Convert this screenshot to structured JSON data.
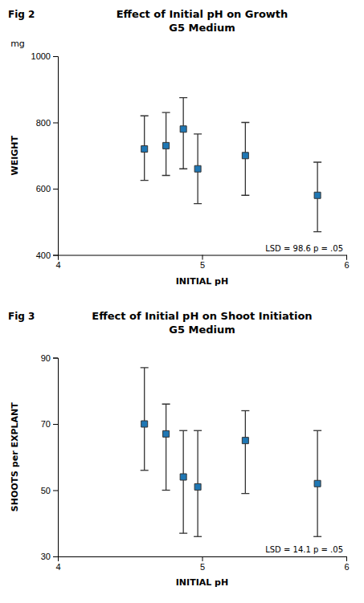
{
  "chart_data": [
    {
      "type": "scatter",
      "title": "Effect of Initial pH on Growth",
      "subtitle": "G5 Medium",
      "annotations": [
        "Fig 2",
        "mg",
        "LSD = 98.6 p = .05"
      ],
      "xlabel": "INITIAL pH",
      "ylabel": "WEIGHT",
      "marker": "square",
      "x": [
        4.6,
        4.75,
        4.87,
        4.97,
        5.3,
        5.8
      ],
      "values": [
        720,
        730,
        780,
        660,
        700,
        580
      ],
      "yerr_low": [
        95,
        90,
        120,
        105,
        120,
        110
      ],
      "yerr_high": [
        100,
        100,
        95,
        105,
        100,
        100
      ],
      "xlim": [
        4,
        6
      ],
      "ylim": [
        400,
        1000
      ],
      "xticks": [
        4,
        5,
        6
      ],
      "yticks": [
        400,
        600,
        800,
        1000
      ]
    },
    {
      "type": "scatter",
      "title": "Effect of Initial pH on Shoot Initiation",
      "subtitle": "G5 Medium",
      "annotations": [
        "Fig 3",
        "LSD = 14.1  p = .05"
      ],
      "xlabel": "INITIAL pH",
      "ylabel": "SHOOTS per EXPLANT",
      "marker": "square",
      "x": [
        4.6,
        4.75,
        4.87,
        4.97,
        5.3,
        5.8
      ],
      "values": [
        70,
        67,
        54,
        51,
        65,
        52
      ],
      "yerr_low": [
        14,
        17,
        17,
        15,
        16,
        16
      ],
      "yerr_high": [
        17,
        9,
        14,
        17,
        9,
        16
      ],
      "xlim": [
        4,
        6
      ],
      "ylim": [
        30,
        90
      ],
      "xticks": [
        4,
        5,
        6
      ],
      "yticks": [
        30,
        50,
        70,
        90
      ]
    }
  ]
}
